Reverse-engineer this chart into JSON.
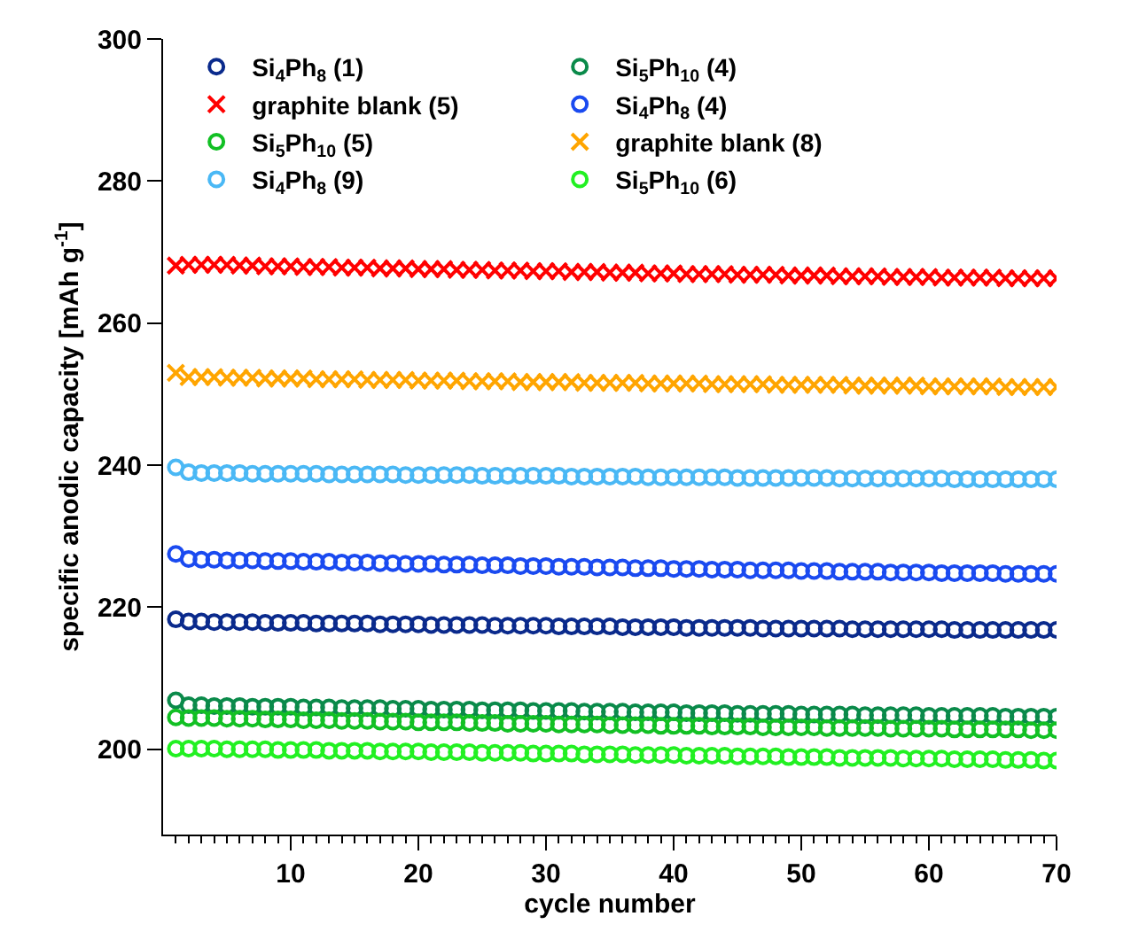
{
  "chart_data": {
    "type": "scatter",
    "xlabel": "cycle number",
    "ylabel": "specific anodic capacity [mAh g$^{-1}$]",
    "x": [
      1,
      2,
      3,
      4,
      5,
      6,
      7,
      8,
      9,
      10,
      11,
      12,
      13,
      14,
      15,
      16,
      17,
      18,
      19,
      20,
      21,
      22,
      23,
      24,
      25,
      26,
      27,
      28,
      29,
      30,
      31,
      32,
      33,
      34,
      35,
      36,
      37,
      38,
      39,
      40,
      41,
      42,
      43,
      44,
      45,
      46,
      47,
      48,
      49,
      50,
      51,
      52,
      53,
      54,
      55,
      56,
      57,
      58,
      59,
      60,
      61,
      62,
      63,
      64,
      65,
      66,
      67,
      68,
      69,
      70
    ],
    "xlim": [
      0,
      70
    ],
    "ylim": [
      188,
      300
    ],
    "xticks": [
      {
        "value": 1,
        "label": null
      },
      {
        "value": 2,
        "label": null
      },
      {
        "value": 3,
        "label": null
      },
      {
        "value": 4,
        "label": null
      },
      {
        "value": 5,
        "label": null
      },
      {
        "value": 6,
        "label": null
      },
      {
        "value": 7,
        "label": null
      },
      {
        "value": 8,
        "label": null
      },
      {
        "value": 9,
        "label": null
      },
      10,
      {
        "value": 11,
        "label": null
      },
      {
        "value": 12,
        "label": null
      },
      {
        "value": 13,
        "label": null
      },
      {
        "value": 14,
        "label": null
      },
      {
        "value": 15,
        "label": null
      },
      {
        "value": 16,
        "label": null
      },
      {
        "value": 17,
        "label": null
      },
      {
        "value": 18,
        "label": null
      },
      {
        "value": 19,
        "label": null
      },
      20,
      {
        "value": 21,
        "label": null
      },
      {
        "value": 22,
        "label": null
      },
      {
        "value": 23,
        "label": null
      },
      {
        "value": 24,
        "label": null
      },
      {
        "value": 25,
        "label": null
      },
      {
        "value": 26,
        "label": null
      },
      {
        "value": 27,
        "label": null
      },
      {
        "value": 28,
        "label": null
      },
      {
        "value": 29,
        "label": null
      },
      30,
      {
        "value": 31,
        "label": null
      },
      {
        "value": 32,
        "label": null
      },
      {
        "value": 33,
        "label": null
      },
      {
        "value": 34,
        "label": null
      },
      {
        "value": 35,
        "label": null
      },
      {
        "value": 36,
        "label": null
      },
      {
        "value": 37,
        "label": null
      },
      {
        "value": 38,
        "label": null
      },
      {
        "value": 39,
        "label": null
      },
      40,
      {
        "value": 41,
        "label": null
      },
      {
        "value": 42,
        "label": null
      },
      {
        "value": 43,
        "label": null
      },
      {
        "value": 44,
        "label": null
      },
      {
        "value": 45,
        "label": null
      },
      {
        "value": 46,
        "label": null
      },
      {
        "value": 47,
        "label": null
      },
      {
        "value": 48,
        "label": null
      },
      {
        "value": 49,
        "label": null
      },
      50,
      {
        "value": 51,
        "label": null
      },
      {
        "value": 52,
        "label": null
      },
      {
        "value": 53,
        "label": null
      },
      {
        "value": 54,
        "label": null
      },
      {
        "value": 55,
        "label": null
      },
      {
        "value": 56,
        "label": null
      },
      {
        "value": 57,
        "label": null
      },
      {
        "value": 58,
        "label": null
      },
      {
        "value": 59,
        "label": null
      },
      60,
      {
        "value": 61,
        "label": null
      },
      {
        "value": 62,
        "label": null
      },
      {
        "value": 63,
        "label": null
      },
      {
        "value": 64,
        "label": null
      },
      {
        "value": 65,
        "label": null
      },
      {
        "value": 66,
        "label": null
      },
      {
        "value": 67,
        "label": null
      },
      {
        "value": 68,
        "label": null
      },
      {
        "value": 69,
        "label": null
      },
      70
    ],
    "yticks": [
      200,
      220,
      240,
      260,
      280,
      300
    ],
    "legend": "top",
    "line_style": "none",
    "series": [
      {
        "name": "Si$_{4}$Ph$_{8}$ (1)",
        "color": "#0a2a8c",
        "marker": "circle",
        "values": [
          218.3,
          218.0,
          218.0,
          217.9,
          217.9,
          217.9,
          217.9,
          217.8,
          217.8,
          217.8,
          217.8,
          217.7,
          217.7,
          217.7,
          217.7,
          217.7,
          217.6,
          217.6,
          217.6,
          217.6,
          217.5,
          217.5,
          217.5,
          217.5,
          217.5,
          217.4,
          217.4,
          217.4,
          217.4,
          217.4,
          217.3,
          217.3,
          217.3,
          217.3,
          217.3,
          217.2,
          217.2,
          217.2,
          217.2,
          217.2,
          217.1,
          217.1,
          217.1,
          217.1,
          217.1,
          217.1,
          217.0,
          217.0,
          217.0,
          217.0,
          217.0,
          217.0,
          217.0,
          216.9,
          216.9,
          216.9,
          216.9,
          216.9,
          216.9,
          216.9,
          216.9,
          216.8,
          216.8,
          216.8,
          216.8,
          216.8,
          216.8,
          216.8,
          216.8,
          216.8
        ]
      },
      {
        "name": "Si$_{4}$Ph$_{8}$ (4)",
        "color": "#1a4af0",
        "marker": "circle",
        "values": [
          227.5,
          226.8,
          226.7,
          226.7,
          226.6,
          226.6,
          226.6,
          226.5,
          226.5,
          226.5,
          226.4,
          226.4,
          226.4,
          226.3,
          226.3,
          226.3,
          226.2,
          226.2,
          226.1,
          226.1,
          226.1,
          226.0,
          226.0,
          226.0,
          225.9,
          225.9,
          225.9,
          225.8,
          225.8,
          225.8,
          225.7,
          225.7,
          225.7,
          225.6,
          225.6,
          225.6,
          225.5,
          225.5,
          225.5,
          225.4,
          225.4,
          225.4,
          225.3,
          225.3,
          225.3,
          225.2,
          225.2,
          225.2,
          225.2,
          225.1,
          225.1,
          225.1,
          225.0,
          225.0,
          225.0,
          225.0,
          224.9,
          224.9,
          224.9,
          224.9,
          224.8,
          224.8,
          224.8,
          224.8,
          224.8,
          224.7,
          224.7,
          224.7,
          224.7,
          224.7
        ]
      },
      {
        "name": "Si$_{4}$Ph$_{8}$ (9)",
        "color": "#4ab8f5",
        "marker": "circle",
        "values": [
          239.7,
          239.0,
          238.9,
          238.9,
          238.9,
          238.9,
          238.8,
          238.8,
          238.8,
          238.8,
          238.8,
          238.8,
          238.7,
          238.7,
          238.7,
          238.7,
          238.7,
          238.7,
          238.6,
          238.6,
          238.6,
          238.6,
          238.6,
          238.6,
          238.5,
          238.5,
          238.5,
          238.5,
          238.5,
          238.5,
          238.5,
          238.4,
          238.4,
          238.4,
          238.4,
          238.4,
          238.4,
          238.3,
          238.3,
          238.3,
          238.3,
          238.3,
          238.3,
          238.3,
          238.2,
          238.2,
          238.2,
          238.2,
          238.2,
          238.2,
          238.2,
          238.2,
          238.1,
          238.1,
          238.1,
          238.1,
          238.1,
          238.1,
          238.1,
          238.1,
          238.1,
          238.0,
          238.0,
          238.0,
          238.0,
          238.0,
          238.0,
          238.0,
          238.0,
          238.0
        ]
      },
      {
        "name": "Si$_{5}$Ph$_{10}$ (4)",
        "color": "#0a8a4a",
        "marker": "circle",
        "values": [
          206.9,
          206.2,
          206.2,
          206.1,
          206.1,
          206.1,
          206.0,
          206.0,
          206.0,
          206.0,
          205.9,
          205.9,
          205.9,
          205.8,
          205.8,
          205.8,
          205.8,
          205.7,
          205.7,
          205.7,
          205.6,
          205.6,
          205.6,
          205.6,
          205.5,
          205.5,
          205.5,
          205.5,
          205.4,
          205.4,
          205.4,
          205.4,
          205.3,
          205.3,
          205.3,
          205.3,
          205.2,
          205.2,
          205.2,
          205.2,
          205.1,
          205.1,
          205.1,
          205.1,
          205.0,
          205.0,
          205.0,
          205.0,
          205.0,
          204.9,
          204.9,
          204.9,
          204.9,
          204.9,
          204.8,
          204.8,
          204.8,
          204.8,
          204.8,
          204.7,
          204.7,
          204.7,
          204.7,
          204.7,
          204.7,
          204.6,
          204.6,
          204.6,
          204.6,
          204.6
        ]
      },
      {
        "name": "Si$_{5}$Ph$_{10}$ (5)",
        "color": "#12c024",
        "marker": "circle",
        "values": [
          204.5,
          204.4,
          204.4,
          204.4,
          204.3,
          204.3,
          204.3,
          204.2,
          204.2,
          204.2,
          204.1,
          204.1,
          204.1,
          204.0,
          204.0,
          204.0,
          203.9,
          203.9,
          203.9,
          203.8,
          203.8,
          203.8,
          203.8,
          203.7,
          203.7,
          203.7,
          203.6,
          203.6,
          203.6,
          203.6,
          203.5,
          203.5,
          203.5,
          203.5,
          203.4,
          203.4,
          203.4,
          203.4,
          203.3,
          203.3,
          203.3,
          203.3,
          203.2,
          203.2,
          203.2,
          203.2,
          203.1,
          203.1,
          203.1,
          203.1,
          203.1,
          203.0,
          203.0,
          203.0,
          203.0,
          203.0,
          202.9,
          202.9,
          202.9,
          202.9,
          202.9,
          202.8,
          202.8,
          202.8,
          202.8,
          202.8,
          202.8,
          202.7,
          202.7,
          202.7
        ]
      },
      {
        "name": "Si$_{5}$Ph$_{10}$ (6)",
        "color": "#22f022",
        "marker": "circle",
        "values": [
          200.1,
          200.1,
          200.1,
          200.1,
          200.0,
          200.0,
          200.0,
          200.0,
          199.9,
          199.9,
          199.9,
          199.9,
          199.8,
          199.8,
          199.8,
          199.8,
          199.7,
          199.7,
          199.7,
          199.7,
          199.6,
          199.6,
          199.6,
          199.6,
          199.5,
          199.5,
          199.5,
          199.5,
          199.4,
          199.4,
          199.4,
          199.4,
          199.3,
          199.3,
          199.3,
          199.3,
          199.2,
          199.2,
          199.2,
          199.2,
          199.1,
          199.1,
          199.1,
          199.1,
          199.0,
          199.0,
          199.0,
          199.0,
          198.9,
          198.9,
          198.9,
          198.9,
          198.8,
          198.8,
          198.8,
          198.8,
          198.8,
          198.7,
          198.7,
          198.7,
          198.7,
          198.6,
          198.6,
          198.6,
          198.6,
          198.5,
          198.5,
          198.5,
          198.4,
          198.4
        ]
      },
      {
        "name": "graphite blank (5)",
        "color": "#ff0000",
        "marker": "cross",
        "values": [
          268.1,
          268.2,
          268.2,
          268.2,
          268.2,
          268.1,
          268.1,
          268.0,
          268.0,
          268.0,
          267.9,
          267.9,
          267.9,
          267.8,
          267.8,
          267.8,
          267.7,
          267.7,
          267.7,
          267.6,
          267.6,
          267.6,
          267.5,
          267.5,
          267.5,
          267.4,
          267.4,
          267.4,
          267.3,
          267.3,
          267.3,
          267.2,
          267.2,
          267.2,
          267.1,
          267.1,
          267.1,
          267.0,
          267.0,
          267.0,
          266.9,
          266.9,
          266.9,
          266.9,
          266.8,
          266.8,
          266.8,
          266.8,
          266.7,
          266.7,
          266.7,
          266.7,
          266.6,
          266.6,
          266.6,
          266.6,
          266.5,
          266.5,
          266.5,
          266.5,
          266.4,
          266.4,
          266.4,
          266.4,
          266.4,
          266.3,
          266.3,
          266.3,
          266.3,
          266.3
        ]
      },
      {
        "name": "graphite blank (8)",
        "color": "#ffa500",
        "marker": "cross",
        "values": [
          253.0,
          252.4,
          252.4,
          252.4,
          252.3,
          252.3,
          252.3,
          252.2,
          252.2,
          252.2,
          252.2,
          252.1,
          252.1,
          252.1,
          252.1,
          252.0,
          252.0,
          252.0,
          252.0,
          251.9,
          251.9,
          251.9,
          251.9,
          251.8,
          251.8,
          251.8,
          251.8,
          251.7,
          251.7,
          251.7,
          251.7,
          251.7,
          251.6,
          251.6,
          251.6,
          251.6,
          251.6,
          251.5,
          251.5,
          251.5,
          251.5,
          251.5,
          251.4,
          251.4,
          251.4,
          251.4,
          251.4,
          251.3,
          251.3,
          251.3,
          251.3,
          251.3,
          251.3,
          251.2,
          251.2,
          251.2,
          251.2,
          251.2,
          251.2,
          251.1,
          251.1,
          251.1,
          251.1,
          251.1,
          251.1,
          251.0,
          251.0,
          251.0,
          251.0,
          251.0
        ]
      }
    ]
  }
}
